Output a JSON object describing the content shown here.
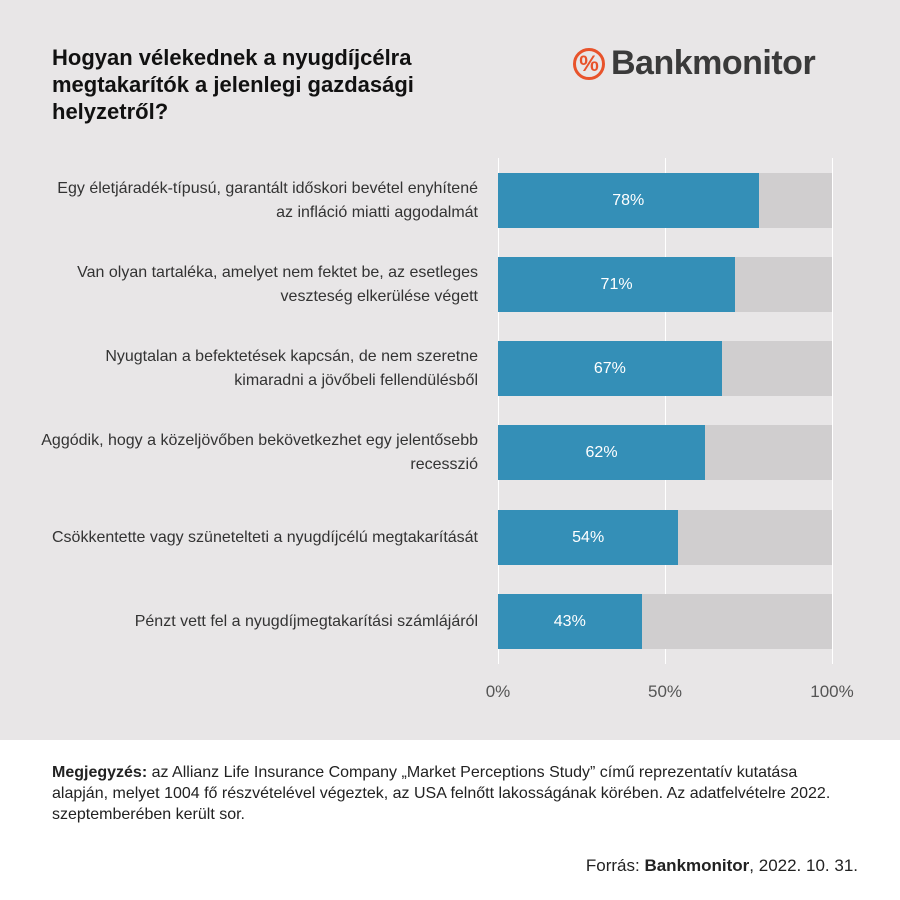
{
  "header": {
    "title": "Hogyan vélekednek  a nyugdíjcélra megtakarítók  a jelenlegi gazdasági helyzetről?",
    "logo_text": "Bankmonitor",
    "logo_symbol": "%"
  },
  "chart_data": {
    "type": "bar",
    "orientation": "horizontal",
    "stacked_remainder": true,
    "categories": [
      "Egy életjáradék-típusú, garantált időskori bevétel enyhítené az infláció miatti aggodalmát",
      "Van olyan tartaléka, amelyet nem fektet be, az esetleges veszteség elkerülése végett",
      "Nyugtalan a befektetések kapcsán, de nem szeretne kimaradni a jövőbeli fellendülésből",
      "Aggódik, hogy a közeljövőben bekövetkezhet egy jelentősebb recesszió",
      "Csökkentette vagy szünetelteti a nyugdíjcélú megtakarítását",
      "Pénzt vett fel a nyugdíjmegtakarítási számlájáról"
    ],
    "values": [
      78,
      71,
      67,
      62,
      54,
      43
    ],
    "value_labels": [
      "78%",
      "71%",
      "67%",
      "62%",
      "54%",
      "43%"
    ],
    "xlim": [
      0,
      100
    ],
    "xticks": [
      "0%",
      "50%",
      "100%"
    ],
    "colors": {
      "bar": "#348fb7",
      "remainder": "#d0cecf"
    }
  },
  "footer": {
    "note_label": "Megjegyzés:",
    "note_text": " az Allianz Life Insurance Company „Market Perceptions Study” című reprezentatív kutatása alapján, melyet 1004 fő részvételével végeztek, az USA felnőtt lakosságának körében. Az adatfelvételre 2022. szeptemberében került sor.",
    "source_label": "Forrás: ",
    "source_name": "Bankmonitor",
    "source_date": ", 2022. 10. 31."
  }
}
